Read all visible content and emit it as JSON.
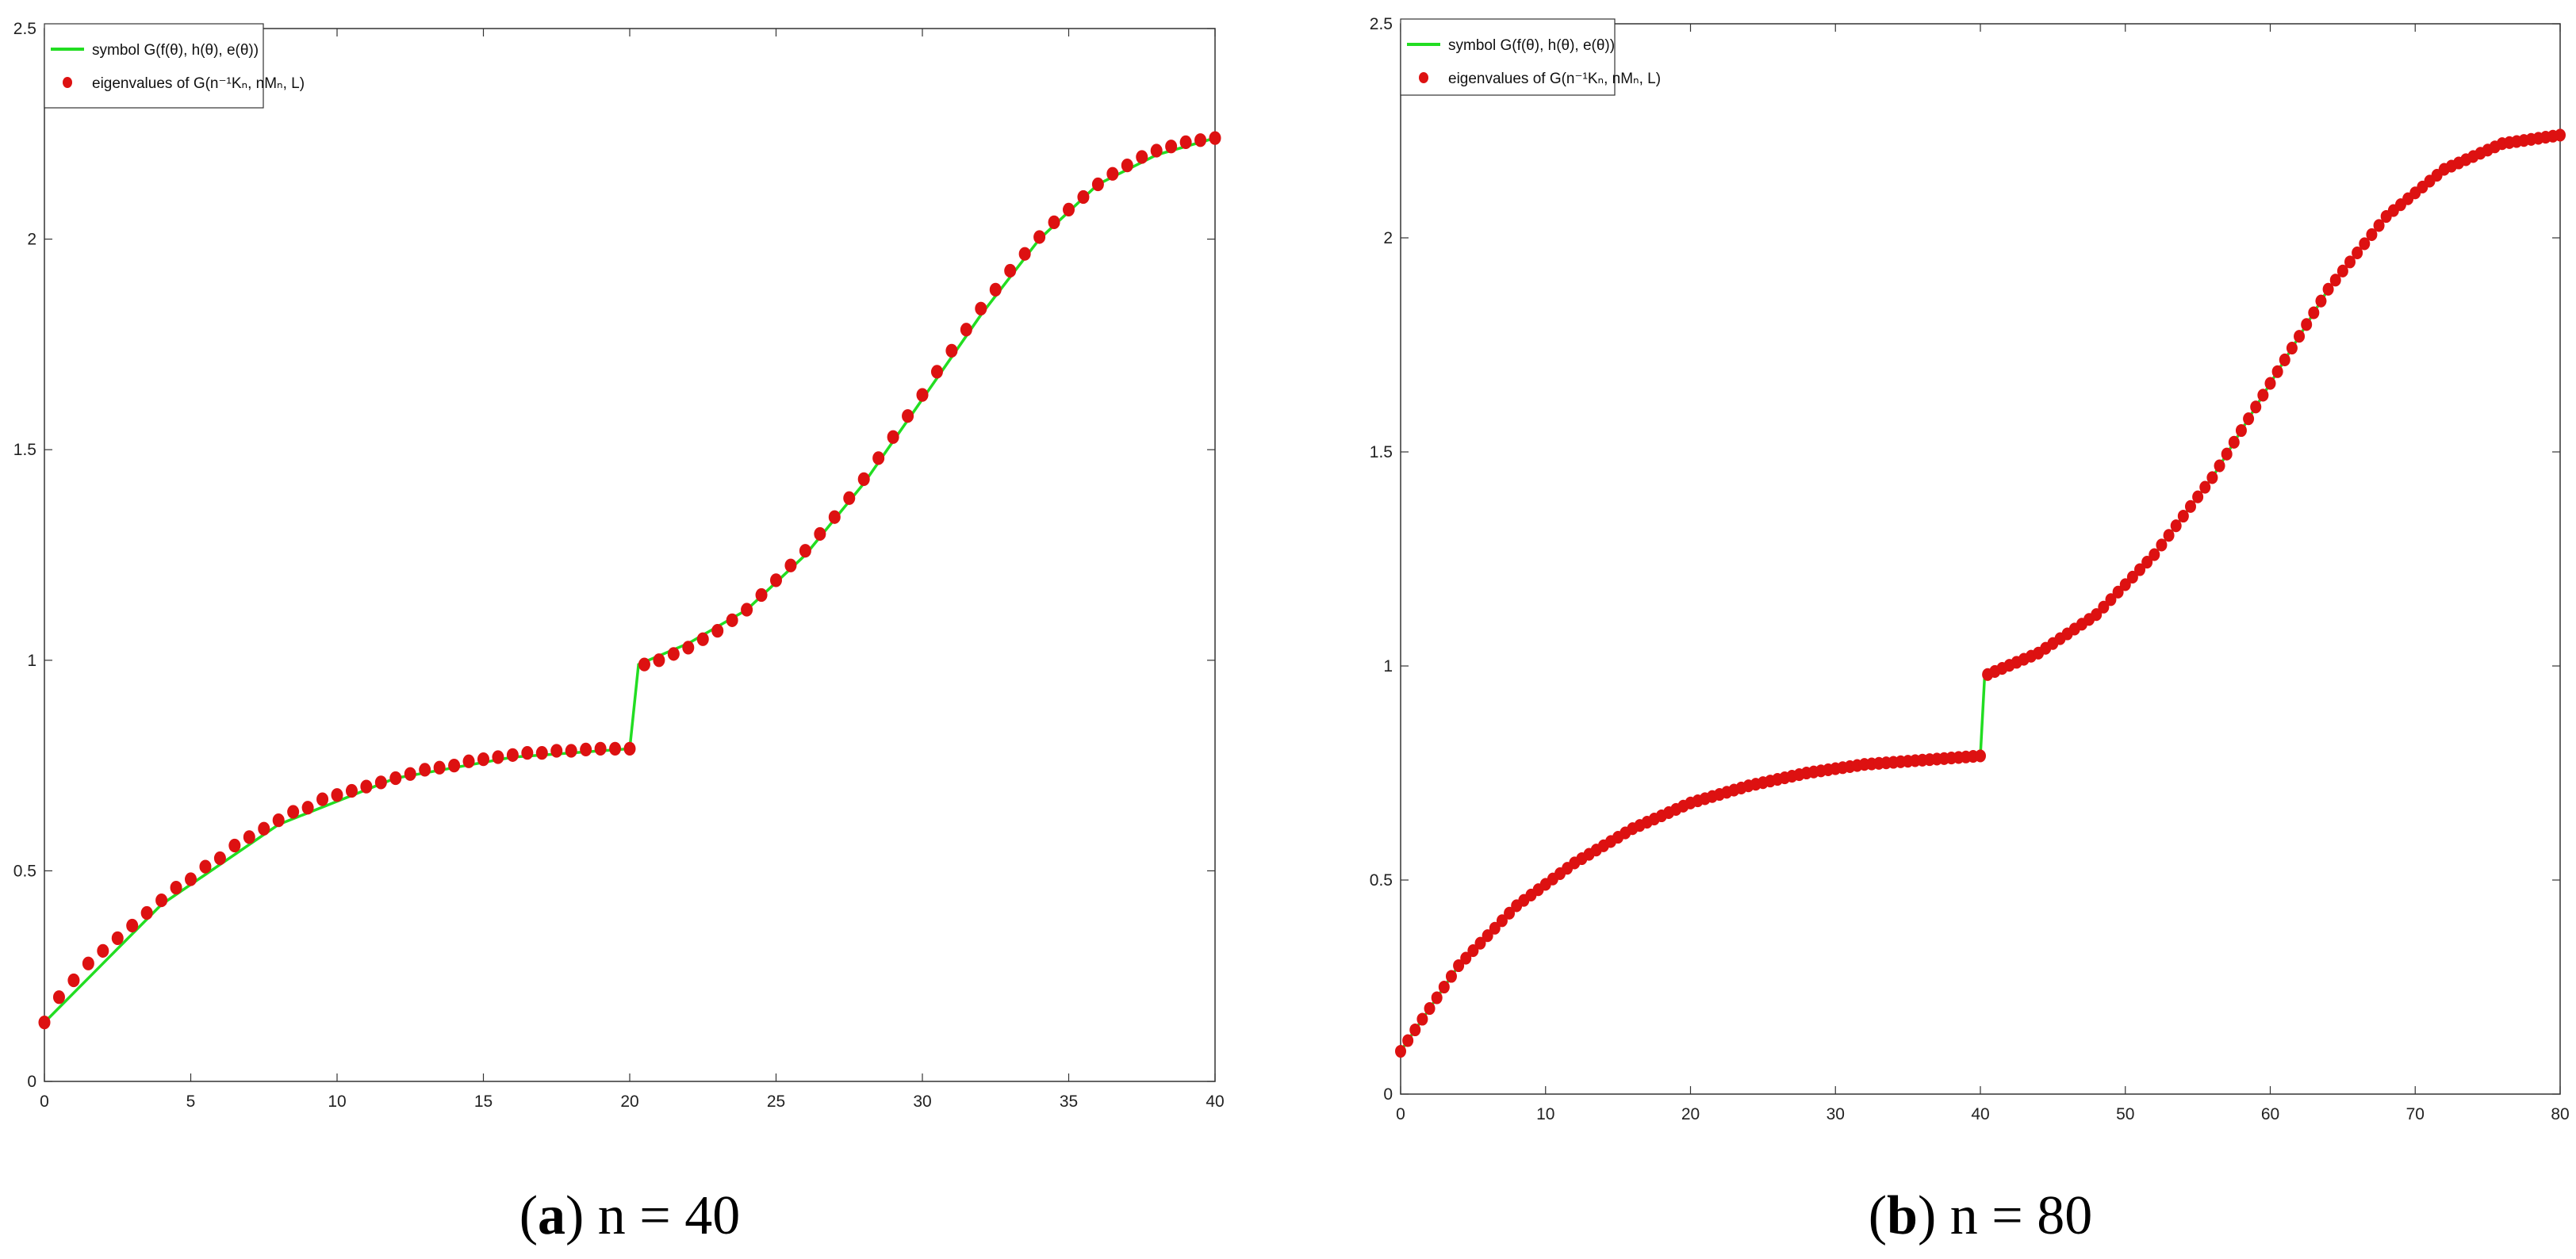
{
  "colors": {
    "symbol_line": "#22dd22",
    "eigen_marker": "#dd1111",
    "axes": "#333333"
  },
  "chart_data": [
    {
      "type": "line",
      "panel": "a",
      "caption_letter": "a",
      "caption_text": ") n = 40",
      "caption_open": "(",
      "n": 40,
      "xlim": [
        0,
        40
      ],
      "ylim": [
        0,
        2.5
      ],
      "xticks": [
        0,
        5,
        10,
        15,
        20,
        25,
        30,
        35,
        40
      ],
      "yticks": [
        0,
        0.5,
        1,
        1.5,
        2,
        2.5
      ],
      "xlabel": "",
      "ylabel": "",
      "legend": {
        "placement": "top-left",
        "line_label": "symbol G(f(θ), h(θ), e(θ))",
        "marker_label": "eigenvalues of G(n⁻¹Kₙ, nMₙ, L)"
      },
      "symbol_curve": {
        "x": [
          0,
          4,
          8,
          12,
          16,
          20,
          20.3,
          22,
          24,
          26,
          28,
          30,
          32,
          34,
          36,
          38,
          40
        ],
        "y": [
          0.14,
          0.42,
          0.61,
          0.72,
          0.77,
          0.79,
          0.99,
          1.04,
          1.12,
          1.25,
          1.42,
          1.62,
          1.82,
          2.0,
          2.13,
          2.2,
          2.24
        ]
      },
      "eigenvalues": {
        "x": [
          0,
          0.5,
          1,
          1.5,
          2,
          2.5,
          3,
          3.5,
          4,
          4.5,
          5,
          5.5,
          6,
          6.5,
          7,
          7.5,
          8,
          8.5,
          9,
          9.5,
          10,
          10.5,
          11,
          11.5,
          12,
          12.5,
          13,
          13.5,
          14,
          14.5,
          15,
          15.5,
          16,
          16.5,
          17,
          17.5,
          18,
          18.5,
          19,
          19.5,
          20,
          20.5,
          21,
          21.5,
          22,
          22.5,
          23,
          23.5,
          24,
          24.5,
          25,
          25.5,
          26,
          26.5,
          27,
          27.5,
          28,
          28.5,
          29,
          29.5,
          30,
          30.5,
          31,
          31.5,
          32,
          32.5,
          33,
          33.5,
          34,
          34.5,
          35,
          35.5,
          36,
          36.5,
          37,
          37.5,
          38,
          38.5,
          39,
          39.5,
          40
        ],
        "y": [
          0.14,
          0.2,
          0.24,
          0.28,
          0.31,
          0.34,
          0.37,
          0.4,
          0.43,
          0.46,
          0.48,
          0.51,
          0.53,
          0.56,
          0.58,
          0.6,
          0.62,
          0.64,
          0.65,
          0.67,
          0.68,
          0.69,
          0.7,
          0.71,
          0.72,
          0.73,
          0.74,
          0.745,
          0.75,
          0.76,
          0.765,
          0.77,
          0.775,
          0.78,
          0.78,
          0.785,
          0.785,
          0.788,
          0.79,
          0.79,
          0.79,
          0.99,
          1.0,
          1.015,
          1.03,
          1.05,
          1.07,
          1.095,
          1.12,
          1.155,
          1.19,
          1.225,
          1.26,
          1.3,
          1.34,
          1.385,
          1.43,
          1.48,
          1.53,
          1.58,
          1.63,
          1.685,
          1.735,
          1.785,
          1.835,
          1.88,
          1.925,
          1.965,
          2.005,
          2.04,
          2.07,
          2.1,
          2.13,
          2.155,
          2.175,
          2.195,
          2.21,
          2.22,
          2.23,
          2.235,
          2.24
        ]
      }
    },
    {
      "type": "line",
      "panel": "b",
      "caption_letter": "b",
      "caption_text": ") n = 80",
      "caption_open": "(",
      "n": 80,
      "xlim": [
        0,
        80
      ],
      "ylim": [
        0,
        2.5
      ],
      "xticks": [
        0,
        10,
        20,
        30,
        40,
        50,
        60,
        70,
        80
      ],
      "yticks": [
        0,
        0.5,
        1,
        1.5,
        2,
        2.5
      ],
      "xlabel": "",
      "ylabel": "",
      "legend": {
        "placement": "top-left",
        "line_label": "symbol G(f(θ), h(θ), e(θ))",
        "marker_label": "eigenvalues of G(n⁻¹Kₙ, nMₙ, L)"
      },
      "symbol_curve": {
        "x": [
          0,
          4,
          8,
          12,
          16,
          20,
          24,
          28,
          32,
          36,
          40,
          40.3,
          44,
          48,
          52,
          56,
          60,
          64,
          68,
          72,
          76,
          80
        ],
        "y": [
          0.1,
          0.3,
          0.44,
          0.54,
          0.62,
          0.68,
          0.72,
          0.75,
          0.77,
          0.78,
          0.79,
          0.98,
          1.03,
          1.12,
          1.26,
          1.44,
          1.66,
          1.88,
          2.05,
          2.16,
          2.22,
          2.24
        ]
      },
      "eigenvalues": {
        "x_start": 0,
        "x_step": 0.5,
        "segments": [
          {
            "x_from": 0,
            "x_to": 40,
            "y_anchor_x": [
              0,
              4,
              8,
              12,
              16,
              20,
              24,
              28,
              32,
              36,
              40
            ],
            "y_anchor_y": [
              0.1,
              0.3,
              0.44,
              0.54,
              0.62,
              0.68,
              0.72,
              0.75,
              0.77,
              0.78,
              0.79
            ]
          },
          {
            "x_from": 40.5,
            "x_to": 80,
            "y_anchor_x": [
              40.5,
              44,
              48,
              52,
              56,
              60,
              64,
              68,
              72,
              76,
              80
            ],
            "y_anchor_y": [
              0.98,
              1.03,
              1.12,
              1.26,
              1.44,
              1.66,
              1.88,
              2.05,
              2.16,
              2.22,
              2.24
            ]
          }
        ]
      }
    }
  ]
}
